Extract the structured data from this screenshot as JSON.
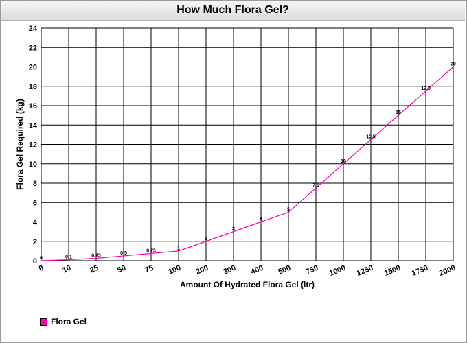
{
  "chart_data": {
    "type": "line",
    "title": "How Much Flora Gel?",
    "xlabel": "Amount Of Hydrated Flora Gel (ltr)",
    "ylabel": "Flora Gel Required (kg)",
    "categories": [
      "0",
      "10",
      "25",
      "50",
      "75",
      "100",
      "200",
      "300",
      "400",
      "500",
      "750",
      "1000",
      "1250",
      "1500",
      "1750",
      "2000"
    ],
    "ylim": [
      0,
      24
    ],
    "yticks": [
      0,
      2,
      4,
      6,
      8,
      10,
      12,
      14,
      16,
      18,
      20,
      22,
      24
    ],
    "grid": true,
    "legend_position": "bottom-left",
    "series": [
      {
        "name": "Flora Gel",
        "color": "#ff00aa",
        "values": [
          0,
          0.1,
          0.25,
          0.5,
          0.75,
          1,
          2,
          3,
          4,
          5,
          7.5,
          10,
          12.5,
          15,
          17.5,
          20
        ],
        "labels": [
          "0",
          "0.1",
          "0.25",
          "0.5",
          "0.75",
          "1",
          "2",
          "3",
          "4",
          "5",
          "7.5",
          "10",
          "12.5",
          "15",
          "17.5",
          "20"
        ]
      }
    ]
  }
}
